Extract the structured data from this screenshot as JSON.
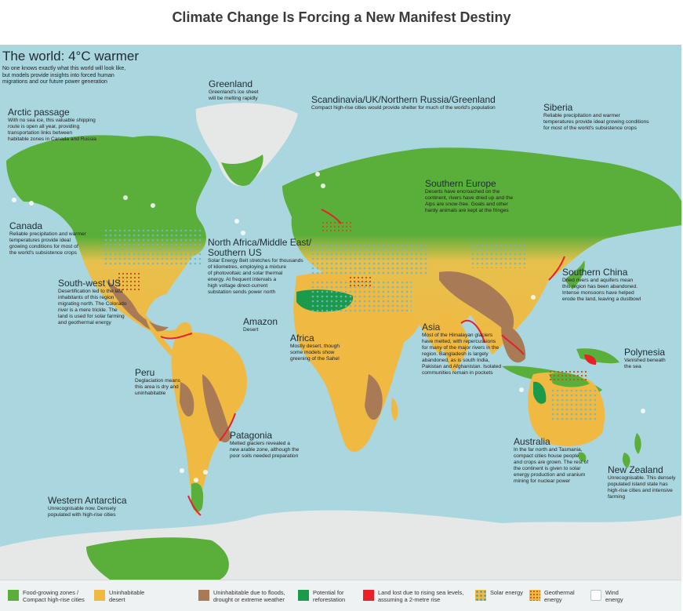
{
  "page": {
    "title": "Climate Change Is Forcing a New Manifest Destiny"
  },
  "map": {
    "heading": "The world: 4°C warmer",
    "intro": "No one knows exactly what this world will look like,\nbut models provide insights into forced human\nmigrations and our future power generation",
    "colors": {
      "ocean": "#a9d6df",
      "food_growing": "#5aae3a",
      "uninhabitable_desert": "#f0b942",
      "floods_drought": "#a87b56",
      "reforestation": "#1a9a4a",
      "sea_level_loss": "#e8202a",
      "solar": "#73b7c0",
      "geothermal": "#c45a1a",
      "ice": "#e6e8e8"
    },
    "regions": [
      {
        "id": "greenland",
        "name": "Greenland",
        "desc": "Greenland's ice sheet\nwill be melting rapidly"
      },
      {
        "id": "scandinavia",
        "name": "Scandinavia/UK/Northern Russia/Greenland",
        "desc": "Compact high-rise cities would provide shelter for much of the world's population"
      },
      {
        "id": "siberia",
        "name": "Siberia",
        "desc": "Reliable precipitation and warmer\ntemperatures provide ideal growing conditions\nfor most of the world's subsistence crops"
      },
      {
        "id": "arctic",
        "name": "Arctic passage",
        "desc": "With no sea ice, this valuable shipping\nroute is open all year, providing\ntransportation links between\nhabitable zones in Canada and Russia"
      },
      {
        "id": "southern_europe",
        "name": "Southern Europe",
        "desc": "Deserts have encroached on the\ncontinent, rivers have dried up and the\nAlps are snow-free. Goats and other\nhardy animals are kept at the fringes"
      },
      {
        "id": "canada",
        "name": "Canada",
        "desc": "Reliable precipitation and warmer\ntemperatures provide ideal\ngrowing conditions for most of\nthe world's subsistence crops"
      },
      {
        "id": "north_africa",
        "name": "North Africa/Middle East/\nSouthern US",
        "desc": "Solar Energy Belt stretches for thousands\nof kilometres, employing a mixture\nof photovoltaic and solar thermal\nenergy. At frequent intervals a\nhigh voltage direct-current\nsubstation sends power north"
      },
      {
        "id": "southern_china",
        "name": "Southern China",
        "desc": "Dried rivers and aquifers mean\nthis region has been abandoned.\nIntense monsoons have helped\nerode the land, leaving a dustbowl"
      },
      {
        "id": "southwest_us",
        "name": "South-west US",
        "desc": "Desertification led to the last\ninhabitants of this region\nmigrating north. The Colorado\nriver is a mere trickle. The\nland is used for solar farming\nand geothermal energy"
      },
      {
        "id": "amazon",
        "name": "Amazon",
        "desc": "Desert"
      },
      {
        "id": "africa",
        "name": "Africa",
        "desc": "Mostly desert, though\nsome models show\ngreening of the Sahel"
      },
      {
        "id": "asia",
        "name": "Asia",
        "desc": "Most of the Himalayan glaciers\nhave melted, with repercussions\nfor many of the major rivers in the\nregion. Bangladesh is largely\nabandoned, as is south India,\nPakistan and Afghanistan. Isolated\ncommunities remain in pockets"
      },
      {
        "id": "polynesia",
        "name": "Polynesia",
        "desc": "Vanished beneath\nthe sea"
      },
      {
        "id": "peru",
        "name": "Peru",
        "desc": "Deglaciation means\nthis area is dry and\nuninhabitable"
      },
      {
        "id": "patagonia",
        "name": "Patagonia",
        "desc": "Melted glaciers revealed a\nnew arable zone, although the\npoor soils needed preparation"
      },
      {
        "id": "australia",
        "name": "Australia",
        "desc": "In the far north and Tasmania,\ncompact cities house people\nand crops are grown. The rest of\nthe continent is given to solar\nenergy production and uranium\nmining for nuclear power"
      },
      {
        "id": "new_zealand",
        "name": "New Zealand",
        "desc": "Unrecognisable. This densely\npopulated island state has\nhigh-rise cities and intensive\nfarming"
      },
      {
        "id": "antarctica",
        "name": "Western Antarctica",
        "desc": "Unrecognisable now. Densely\npopulated with high-rise cities"
      }
    ]
  },
  "legend": [
    {
      "id": "food",
      "label": "Food-growing zones /\nCompact high-rise cities",
      "color": "#5aae3a"
    },
    {
      "id": "desert",
      "label": "Uninhabitable\ndesert",
      "color": "#f0b942"
    },
    {
      "id": "floods",
      "label": "Uninhabitable due to floods,\ndrought or extreme weather",
      "color": "#a87b56"
    },
    {
      "id": "reforest",
      "label": "Potential for\nreforestation",
      "color": "#1a9a4a"
    },
    {
      "id": "sealevel",
      "label": "Land lost due to rising sea levels,\nassuming a 2-metre rise",
      "color": "#e8202a"
    },
    {
      "id": "solar",
      "label": "Solar energy",
      "color": "#73b7c0"
    },
    {
      "id": "geo",
      "label": "Geothermal\nenergy",
      "color": "#c45a1a"
    },
    {
      "id": "wind",
      "label": "Wind\nenergy",
      "color": "#ffffff"
    }
  ]
}
